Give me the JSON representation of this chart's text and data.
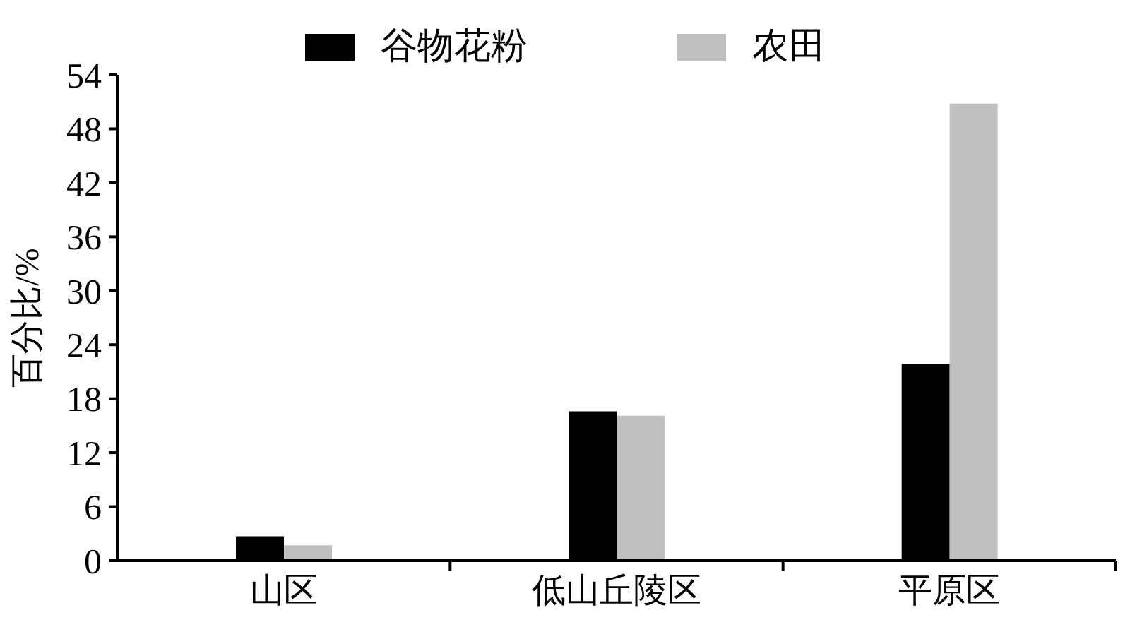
{
  "chart_data": {
    "type": "bar",
    "ylabel": "百分比/%",
    "categories": [
      "山区",
      "低山丘陵区",
      "平原区"
    ],
    "series": [
      {
        "name": "谷物花粉",
        "color": "#000000",
        "values": [
          2.7,
          16.6,
          21.9
        ]
      },
      {
        "name": "农田",
        "color": "#c0c0c0",
        "values": [
          1.7,
          16.1,
          50.8
        ]
      }
    ],
    "ylim": [
      0,
      54
    ],
    "yticks": [
      0,
      6,
      12,
      18,
      24,
      30,
      36,
      42,
      48,
      54
    ],
    "legend": "top"
  }
}
